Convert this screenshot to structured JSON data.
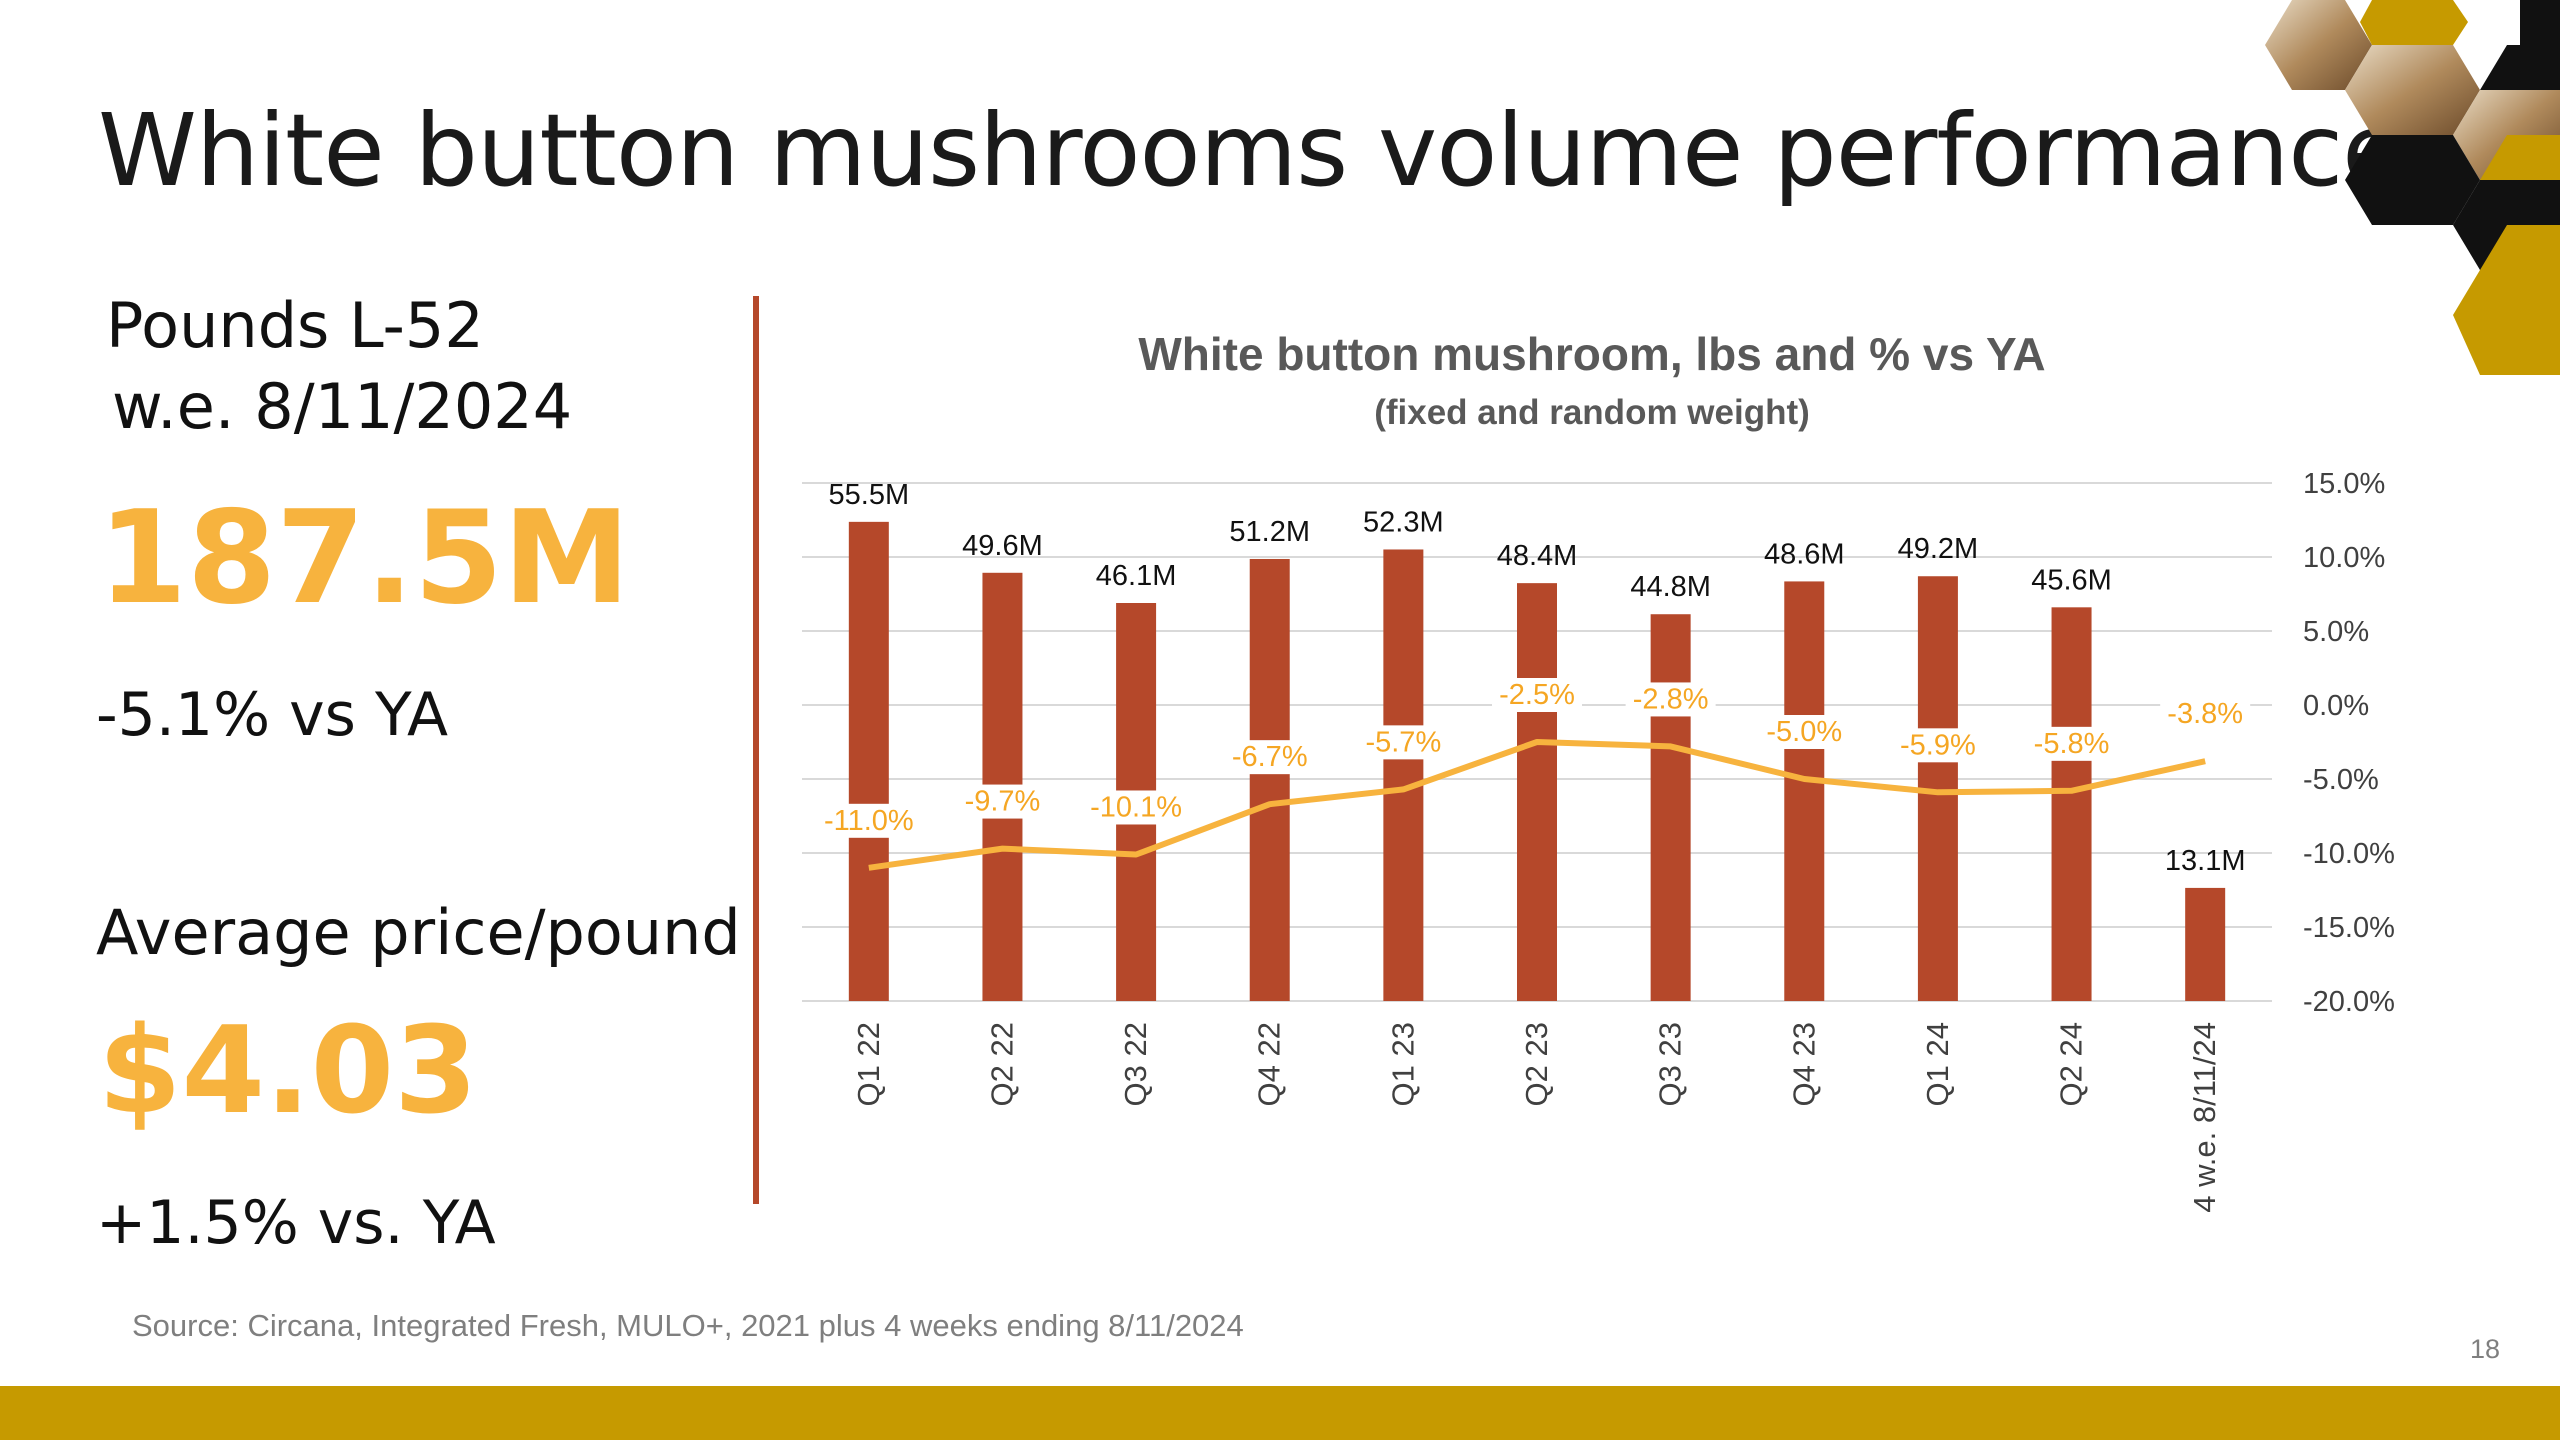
{
  "page": {
    "title": "White button mushrooms volume performance",
    "source": "Source: Circana, Integrated Fresh, MULO+, 2021 plus 4 weeks ending 8/11/2024",
    "page_number": "18"
  },
  "kpis": {
    "pounds_label_line1": "Pounds L-52",
    "pounds_label_line2": "w.e. 8/11/2024",
    "pounds_value": "187.5M",
    "pounds_change": "-5.1% vs YA",
    "price_label": "Average price/pound",
    "price_value": "$4.03",
    "price_change": "+1.5% vs. YA"
  },
  "colors": {
    "bar": "#B5482A",
    "line": "#F7B33E",
    "accent_gold": "#C69A00",
    "kpi_value": "#F7B33E"
  },
  "chart_data": {
    "type": "bar",
    "title": "White button mushroom, lbs and % vs YA",
    "subtitle": "(fixed and random weight)",
    "categories": [
      "Q1 22",
      "Q2 22",
      "Q3 22",
      "Q4 22",
      "Q1 23",
      "Q2 23",
      "Q3 23",
      "Q4 23",
      "Q1 24",
      "Q2 24",
      "4 w.e. 8/11/24"
    ],
    "series": [
      {
        "kind": "bar",
        "values": [
          55.5,
          49.6,
          46.1,
          51.2,
          52.3,
          48.4,
          44.8,
          48.6,
          49.2,
          45.6,
          13.1
        ],
        "labels": [
          "55.5M",
          "49.6M",
          "46.1M",
          "51.2M",
          "52.3M",
          "48.4M",
          "44.8M",
          "48.6M",
          "49.2M",
          "45.6M",
          "13.1M"
        ],
        "axis": "left"
      },
      {
        "kind": "line",
        "values": [
          -11.0,
          -9.7,
          -10.1,
          -6.7,
          -5.7,
          -2.5,
          -2.8,
          -5.0,
          -5.9,
          -5.8,
          -3.8
        ],
        "labels": [
          "-11.0%",
          "-9.7%",
          "-10.1%",
          "-6.7%",
          "-5.7%",
          "-2.5%",
          "-2.8%",
          "-5.0%",
          "-5.9%",
          "-5.8%",
          "-3.8%"
        ],
        "axis": "right"
      }
    ],
    "left_ylim": [
      0,
      60
    ],
    "right_ylim": [
      -20,
      15
    ],
    "right_ticks": [
      "15.0%",
      "10.0%",
      "5.0%",
      "0.0%",
      "-5.0%",
      "-10.0%",
      "-15.0%",
      "-20.0%"
    ],
    "grid": true,
    "legend": "none"
  }
}
